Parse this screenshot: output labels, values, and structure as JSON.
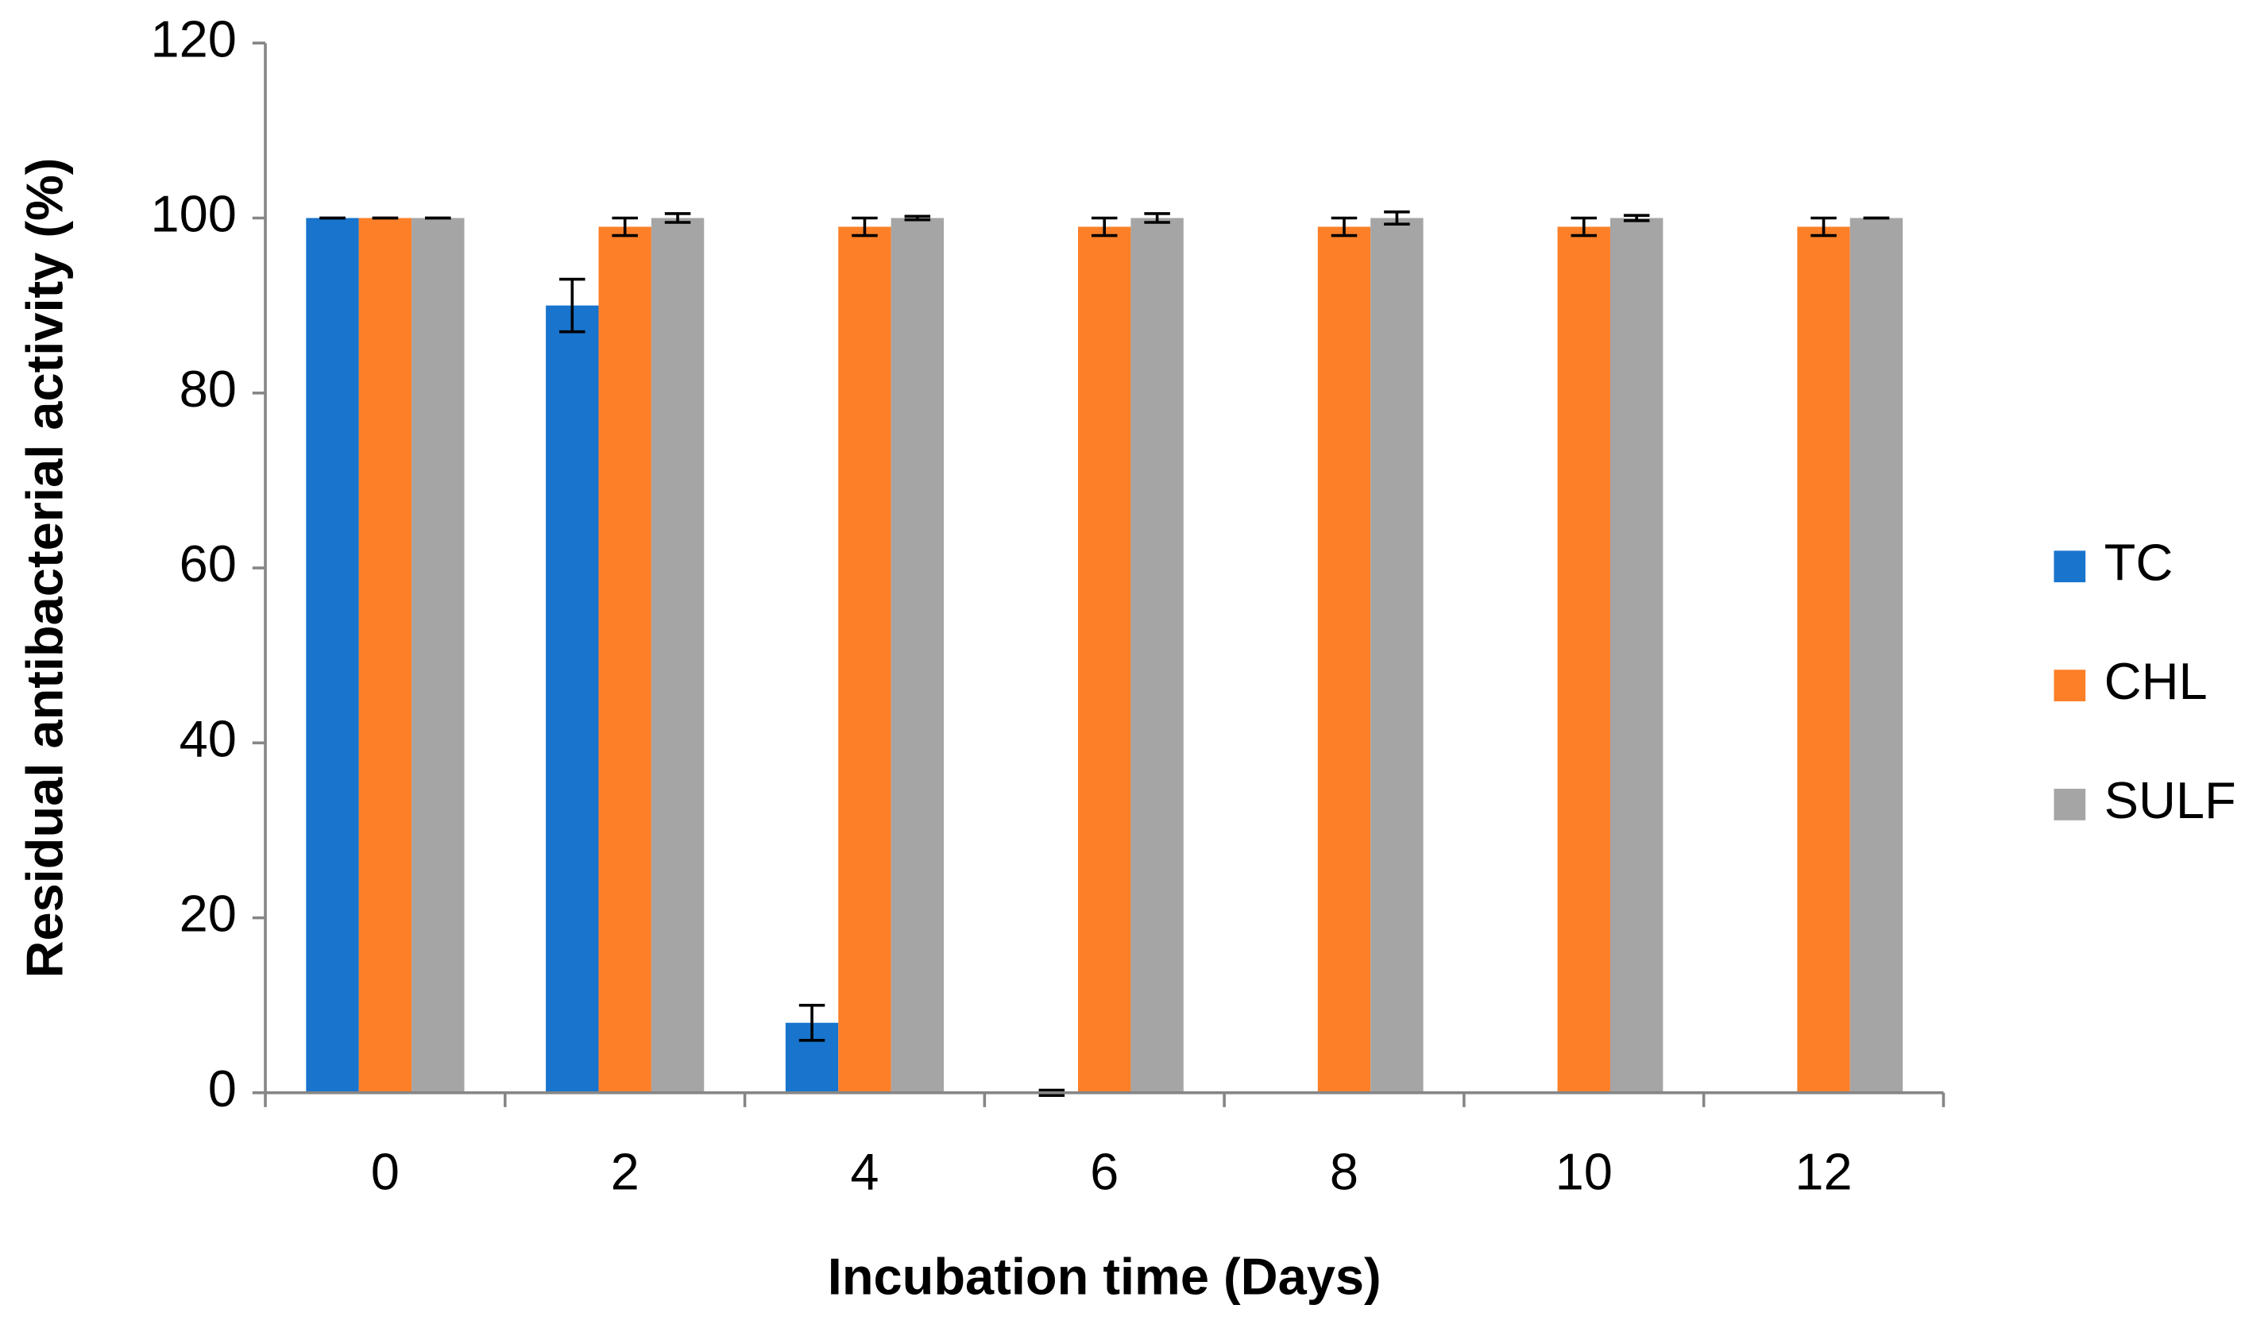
{
  "chart_data": {
    "type": "bar",
    "x_label": "Incubation time (Days)",
    "y_label": "Residual antibacterial activity (%)",
    "categories": [
      "0",
      "2",
      "4",
      "6",
      "8",
      "10",
      "12"
    ],
    "series": [
      {
        "name": "TC",
        "color": "#1874cd",
        "values": [
          100,
          90,
          8,
          0,
          0,
          0,
          0
        ],
        "errors": [
          0,
          3,
          2,
          0.3,
          null,
          null,
          null
        ]
      },
      {
        "name": "CHL",
        "color": "#fd7f28",
        "values": [
          100,
          99,
          99,
          99,
          99,
          99,
          99
        ],
        "errors": [
          0,
          1,
          1,
          1,
          1,
          1,
          1
        ]
      },
      {
        "name": "SULF",
        "color": "#a5a5a5",
        "values": [
          100,
          100,
          100,
          100,
          100,
          100,
          100
        ],
        "errors": [
          0,
          0.5,
          0.2,
          0.5,
          0.7,
          0.3,
          0
        ]
      }
    ],
    "ylim": [
      0,
      120
    ],
    "yticks": [
      0,
      20,
      40,
      60,
      80,
      100,
      120
    ],
    "grid": false,
    "legend": "right"
  }
}
